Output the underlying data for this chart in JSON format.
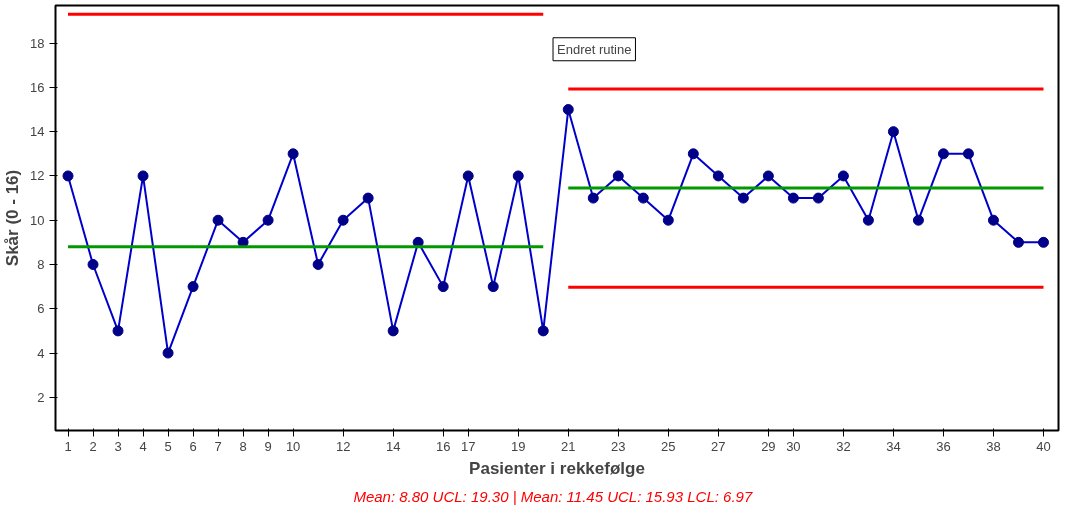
{
  "chart_data": {
    "type": "line",
    "xlabel": "Pasienter i rekkefølge",
    "ylabel": "Skår (0 - 16)",
    "x": [
      1,
      2,
      3,
      4,
      5,
      6,
      7,
      8,
      9,
      10,
      11,
      12,
      13,
      14,
      15,
      16,
      17,
      18,
      19,
      20,
      21,
      22,
      23,
      24,
      25,
      26,
      27,
      28,
      29,
      30,
      31,
      32,
      33,
      34,
      35,
      36,
      37,
      38,
      39,
      40
    ],
    "xlim": [
      0.5,
      40.6
    ],
    "ylim": [
      0.5,
      19.7
    ],
    "xticks": [
      1,
      2,
      3,
      4,
      5,
      6,
      7,
      8,
      9,
      10,
      12,
      14,
      16,
      17,
      19,
      21,
      23,
      25,
      27,
      29,
      30,
      32,
      34,
      36,
      38,
      40
    ],
    "yticks": [
      2,
      4,
      6,
      8,
      10,
      12,
      14,
      16,
      18
    ],
    "marker": "circle",
    "grid": false,
    "series": [
      {
        "color": "#0000cc",
        "values": [
          12,
          8,
          5,
          12,
          4,
          7,
          10,
          9,
          10,
          13,
          8,
          10,
          11,
          5,
          9,
          7,
          12,
          7,
          12,
          5,
          15,
          11,
          12,
          11,
          10,
          13,
          12,
          11,
          12,
          11,
          11,
          12,
          10,
          14,
          10,
          13,
          13,
          10,
          9,
          9
        ]
      },
      {
        "color": "#009900",
        "x": [
          1,
          20
        ],
        "values": [
          8.8,
          8.8
        ],
        "marker": "none"
      },
      {
        "color": "#ff0000",
        "x": [
          1,
          20
        ],
        "values": [
          19.3,
          19.3
        ],
        "marker": "none"
      },
      {
        "color": "#009900",
        "x": [
          21,
          40
        ],
        "values": [
          11.45,
          11.45
        ],
        "marker": "none"
      },
      {
        "color": "#ff0000",
        "x": [
          21,
          40
        ],
        "values": [
          15.93,
          15.93
        ],
        "marker": "none"
      },
      {
        "color": "#ff0000",
        "x": [
          21,
          40
        ],
        "values": [
          6.97,
          6.97
        ],
        "marker": "none"
      }
    ],
    "annotations": [
      "Endret rutine",
      "Mean: 8.80 UCL: 19.30  |  Mean: 11.45 UCL: 15.93 LCL: 6.97"
    ]
  }
}
